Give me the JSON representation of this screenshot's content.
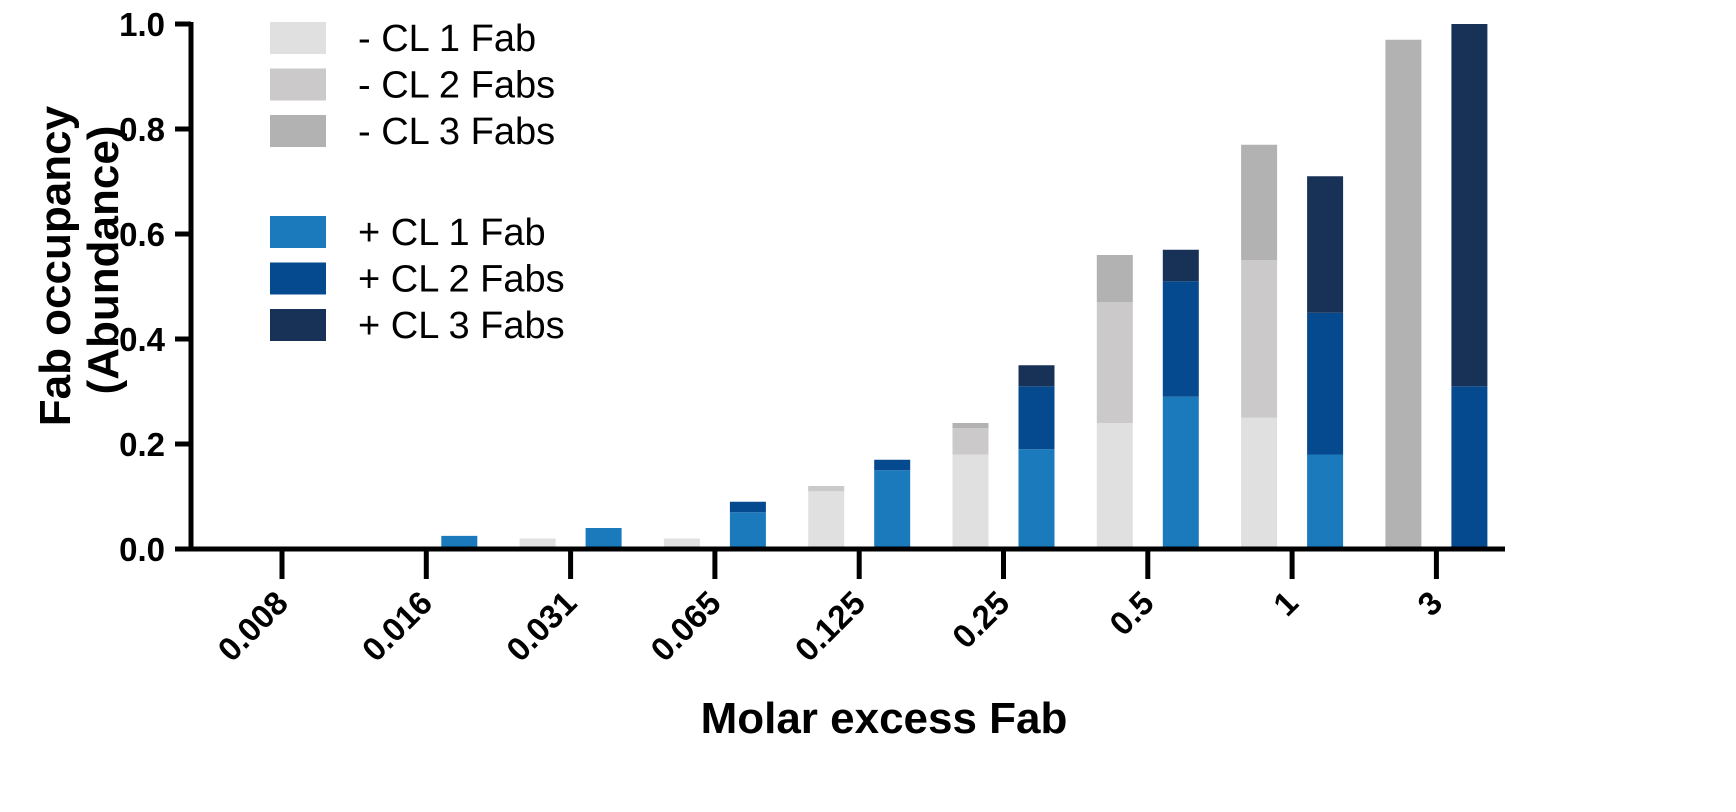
{
  "chart_data": {
    "type": "bar",
    "subtype": "stacked, grouped",
    "xlabel": "Molar excess Fab",
    "ylabel_lines": [
      "Fab occupancy",
      "(Abundance)"
    ],
    "ylim": [
      0,
      1.0
    ],
    "yticks": [
      "0.0",
      "0.2",
      "0.4",
      "0.6",
      "0.8",
      "1.0"
    ],
    "grid": false,
    "legend_position": "top-left",
    "categories": [
      "0.008",
      "0.016",
      "0.031",
      "0.065",
      "0.125",
      "0.25",
      "0.5",
      "1",
      "3"
    ],
    "groups": [
      {
        "key": "minus",
        "series": [
          {
            "name": "- CL 1 Fab",
            "color": "#e0e0e0",
            "values": [
              0,
              0,
              0.02,
              0.02,
              0.11,
              0.18,
              0.24,
              0.25,
              0
            ]
          },
          {
            "name": "- CL 2 Fabs",
            "color": "#cbc9ca",
            "values": [
              0,
              0,
              0,
              0,
              0.01,
              0.05,
              0.23,
              0.3,
              0
            ]
          },
          {
            "name": "- CL 3 Fabs",
            "color": "#b3b2b3",
            "values": [
              0,
              0,
              0,
              0,
              0,
              0.01,
              0.09,
              0.22,
              0.97
            ]
          }
        ]
      },
      {
        "key": "plus",
        "series": [
          {
            "name": "+ CL 1 Fab",
            "color": "#1a7abb",
            "values": [
              0,
              0.025,
              0.04,
              0.07,
              0.15,
              0.19,
              0.29,
              0.18,
              0
            ]
          },
          {
            "name": "+ CL 2 Fabs",
            "color": "#05498f",
            "values": [
              0,
              0,
              0,
              0.02,
              0.02,
              0.12,
              0.22,
              0.27,
              0.31
            ]
          },
          {
            "name": "+ CL 3 Fabs",
            "color": "#183157",
            "values": [
              0,
              0,
              0,
              0,
              0,
              0.04,
              0.06,
              0.26,
              0.69
            ]
          }
        ]
      }
    ]
  }
}
